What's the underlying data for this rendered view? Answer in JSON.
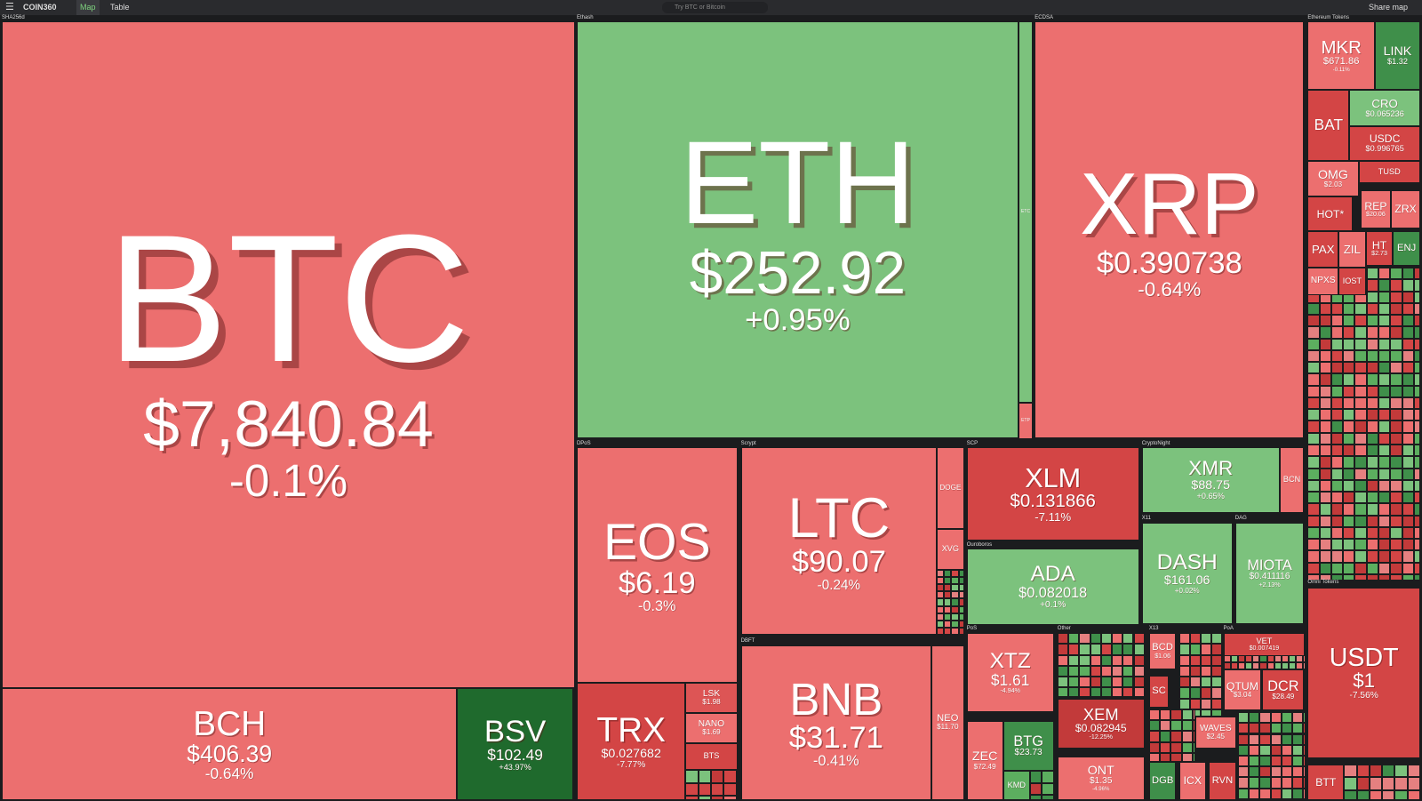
{
  "toolbar": {
    "brand": "COIN360",
    "tabs": [
      "Map",
      "Table"
    ],
    "search": "Try BTC or Bitcoin",
    "share": "Share map"
  },
  "groups": [
    "SHA256d",
    "Ethash",
    "ECDSA",
    "Ethereum Tokens",
    "DPoS",
    "Scrypt",
    "SCP",
    "CryptoNight",
    "X11",
    "DAG",
    "Ouroboros",
    "DBFT",
    "PoS",
    "Other",
    "X13",
    "PoA",
    "Omni Tokens"
  ],
  "tiles": [
    {
      "symbol": "BTC",
      "price": "$7,840.84",
      "change": "-0.1%",
      "color": "#ec6f6f"
    },
    {
      "symbol": "BCH",
      "price": "$406.39",
      "change": "-0.64%",
      "color": "#ec6f6f"
    },
    {
      "symbol": "BSV",
      "price": "$102.49",
      "change": "+43.97%",
      "color": "#1f6a2d"
    },
    {
      "symbol": "ETH",
      "price": "$252.92",
      "change": "+0.95%",
      "color": "#7cc27d"
    },
    {
      "symbol": "ETC",
      "color": "#7cc27d"
    },
    {
      "symbol": "ETP",
      "color": "#ec6f6f"
    },
    {
      "symbol": "XRP",
      "price": "$0.390738",
      "change": "-0.64%",
      "color": "#ec6f6f"
    },
    {
      "symbol": "EOS",
      "price": "$6.19",
      "change": "-0.3%",
      "color": "#ec6f6f"
    },
    {
      "symbol": "TRX",
      "price": "$0.027682",
      "change": "-7.77%",
      "color": "#d34545"
    },
    {
      "symbol": "LSK",
      "price": "$1.98",
      "color": "#dd5555"
    },
    {
      "symbol": "NANO",
      "price": "$1.69",
      "color": "#ec6f6f"
    },
    {
      "symbol": "BTS",
      "color": "#d34545"
    },
    {
      "symbol": "LTC",
      "price": "$90.07",
      "change": "-0.24%",
      "color": "#ec6f6f"
    },
    {
      "symbol": "DOGE",
      "color": "#ec6f6f"
    },
    {
      "symbol": "XVG",
      "color": "#ec6f6f"
    },
    {
      "symbol": "BNB",
      "price": "$31.71",
      "change": "-0.41%",
      "color": "#ec6f6f"
    },
    {
      "symbol": "NEO",
      "price": "$11.70",
      "color": "#ec6f6f"
    },
    {
      "symbol": "XLM",
      "price": "$0.131866",
      "change": "-7.11%",
      "color": "#d34545"
    },
    {
      "symbol": "ADA",
      "price": "$0.082018",
      "change": "+0.1%",
      "color": "#7cc27d"
    },
    {
      "symbol": "XMR",
      "price": "$88.75",
      "change": "+0.65%",
      "color": "#7cc27d"
    },
    {
      "symbol": "BCN",
      "color": "#ec6f6f"
    },
    {
      "symbol": "DASH",
      "price": "$161.06",
      "change": "+0.02%",
      "color": "#7cc27d"
    },
    {
      "symbol": "MIOTA",
      "price": "$0.411116",
      "change": "+2.13%",
      "color": "#7cc27d"
    },
    {
      "symbol": "XTZ",
      "price": "$1.61",
      "change": "-4.94%",
      "color": "#ec6f6f"
    },
    {
      "symbol": "ZEC",
      "price": "$72.49",
      "color": "#ec6f6f"
    },
    {
      "symbol": "BTG",
      "price": "$23.73",
      "color": "#3f8f4a"
    },
    {
      "symbol": "KMD",
      "color": "#5cae5f"
    },
    {
      "symbol": "XEM",
      "price": "$0.082945",
      "change": "-12.25%",
      "color": "#c23a3a"
    },
    {
      "symbol": "ONT",
      "price": "$1.35",
      "change": "-4.96%",
      "color": "#ec6f6f"
    },
    {
      "symbol": "BCD",
      "price": "$1.06",
      "color": "#ec6f6f"
    },
    {
      "symbol": "SC",
      "color": "#d34545"
    },
    {
      "symbol": "VET",
      "price": "$0.007419",
      "color": "#d34545"
    },
    {
      "symbol": "QTUM",
      "price": "$3.04",
      "color": "#ec6f6f"
    },
    {
      "symbol": "DCR",
      "price": "$28.49",
      "color": "#d34545"
    },
    {
      "symbol": "WAVES",
      "price": "$2.45",
      "color": "#ec6f6f"
    },
    {
      "symbol": "DGB",
      "color": "#3f8f4a"
    },
    {
      "symbol": "ICX",
      "color": "#ec6f6f"
    },
    {
      "symbol": "RVN",
      "color": "#d34545"
    },
    {
      "symbol": "MKR",
      "price": "$671.86",
      "change": "-0.11%",
      "color": "#ec6f6f"
    },
    {
      "symbol": "LINK",
      "price": "$1.32",
      "color": "#3f8f4a"
    },
    {
      "symbol": "BAT",
      "color": "#d34545"
    },
    {
      "symbol": "CRO",
      "price": "$0.065236",
      "color": "#7cc27d"
    },
    {
      "symbol": "USDC",
      "price": "$0.996765",
      "color": "#d34545"
    },
    {
      "symbol": "OMG",
      "price": "$2.03",
      "color": "#ec6f6f"
    },
    {
      "symbol": "TUSD",
      "color": "#d34545"
    },
    {
      "symbol": "HOT*",
      "color": "#d34545"
    },
    {
      "symbol": "REP",
      "price": "$20.06",
      "color": "#ec6f6f"
    },
    {
      "symbol": "ZRX",
      "color": "#ec6f6f"
    },
    {
      "symbol": "PAX",
      "color": "#d34545"
    },
    {
      "symbol": "ZIL",
      "color": "#ec6f6f"
    },
    {
      "symbol": "HT",
      "price": "$2.73",
      "color": "#d34545"
    },
    {
      "symbol": "ENJ",
      "color": "#3f8f4a"
    },
    {
      "symbol": "NPXS",
      "color": "#ec6f6f"
    },
    {
      "symbol": "IOST",
      "color": "#d34545"
    },
    {
      "symbol": "USDT",
      "price": "$1",
      "change": "-7.56%",
      "color": "#d34545"
    },
    {
      "symbol": "BTT",
      "color": "#d34545"
    }
  ]
}
